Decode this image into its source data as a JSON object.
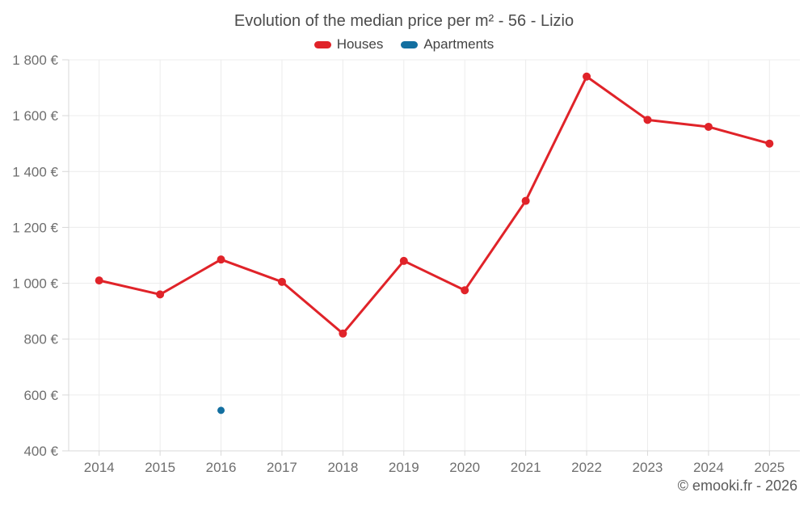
{
  "title": "Evolution of the median price per m² - 56 - Lizio",
  "footer": "© emooki.fr - 2026",
  "legend": [
    {
      "label": "Houses",
      "color": "#e02329"
    },
    {
      "label": "Apartments",
      "color": "#136fa0"
    }
  ],
  "chart_data": {
    "type": "line",
    "title": "Evolution of the median price per m² - 56 - Lizio",
    "categories": [
      "2014",
      "2015",
      "2016",
      "2017",
      "2018",
      "2019",
      "2020",
      "2021",
      "2022",
      "2023",
      "2024",
      "2025"
    ],
    "series": [
      {
        "name": "Houses",
        "color": "#e02329",
        "values": [
          1010,
          960,
          1085,
          1005,
          820,
          1080,
          975,
          1295,
          1740,
          1585,
          1560,
          1500
        ]
      },
      {
        "name": "Apartments",
        "color": "#136fa0",
        "values": [
          null,
          null,
          545,
          null,
          null,
          null,
          null,
          null,
          null,
          null,
          null,
          null
        ]
      }
    ],
    "xlabel": "",
    "ylabel": "",
    "ylim": [
      400,
      1800
    ],
    "yticks": [
      400,
      600,
      800,
      1000,
      1200,
      1400,
      1600,
      1800
    ],
    "ytick_suffix": "€",
    "grid": true,
    "legend_position": "top",
    "annotations": []
  },
  "colors": {
    "gridline": "#ececec",
    "axis_line": "#d8d8d8",
    "tick": "#d8d8d8",
    "tick_label": "#6e6e6e"
  }
}
